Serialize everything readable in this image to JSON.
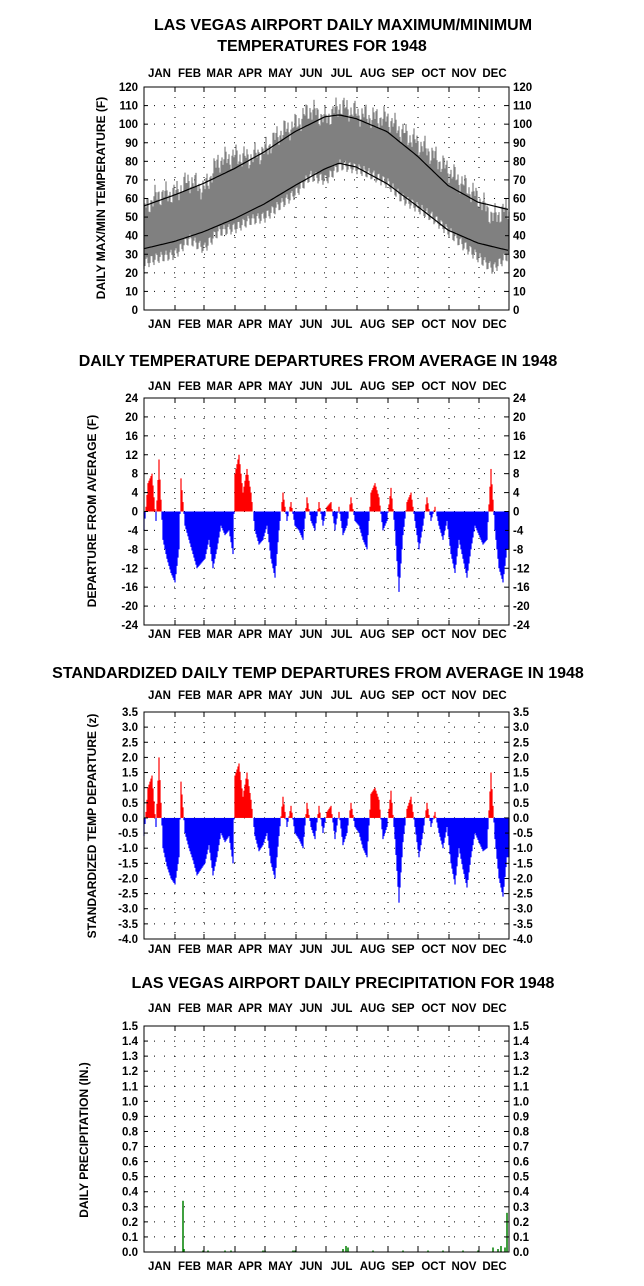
{
  "months": [
    "JAN",
    "FEB",
    "MAR",
    "APR",
    "MAY",
    "JUN",
    "JUL",
    "AUG",
    "SEP",
    "OCT",
    "NOV",
    "DEC"
  ],
  "chart_data": [
    {
      "type": "area",
      "title_lines": [
        "LAS VEGAS AIRPORT DAILY MAXIMUM/MINIMUM",
        "TEMPERATURES FOR 1948"
      ],
      "ylabel": "DAILY MAX/MIN TEMPERATURE (F)",
      "ylim": [
        0,
        120
      ],
      "yticks": [
        0,
        10,
        20,
        30,
        40,
        50,
        60,
        70,
        80,
        90,
        100,
        110,
        120
      ],
      "grid": true,
      "colors": {
        "range": "#808080",
        "normals": "#000000"
      },
      "daily_max_sampled": {
        "days": [
          1,
          15,
          32,
          46,
          61,
          75,
          92,
          106,
          122,
          136,
          153,
          167,
          183,
          197,
          214,
          228,
          245,
          259,
          275,
          289,
          306,
          320,
          336,
          350,
          366
        ],
        "values": [
          55,
          62,
          63,
          70,
          65,
          80,
          83,
          82,
          86,
          95,
          100,
          108,
          103,
          110,
          106,
          104,
          103,
          96,
          90,
          84,
          75,
          68,
          60,
          50,
          55
        ]
      },
      "daily_min_sampled": {
        "days": [
          1,
          15,
          32,
          46,
          61,
          75,
          92,
          106,
          122,
          136,
          153,
          167,
          183,
          197,
          214,
          228,
          245,
          259,
          275,
          289,
          306,
          320,
          336,
          350,
          366
        ],
        "values": [
          25,
          28,
          30,
          38,
          33,
          42,
          44,
          48,
          50,
          56,
          63,
          72,
          70,
          78,
          76,
          73,
          68,
          60,
          55,
          50,
          42,
          35,
          28,
          22,
          30
        ]
      },
      "normal_max": {
        "days": [
          1,
          32,
          60,
          91,
          121,
          152,
          182,
          196,
          213,
          244,
          274,
          305,
          335,
          366
        ],
        "values": [
          56,
          62,
          68,
          76,
          85,
          96,
          104,
          105,
          103,
          96,
          83,
          67,
          58,
          54
        ]
      },
      "normal_min": {
        "days": [
          1,
          32,
          60,
          91,
          121,
          152,
          182,
          196,
          213,
          244,
          274,
          305,
          335,
          366
        ],
        "values": [
          33,
          37,
          42,
          49,
          57,
          67,
          76,
          79,
          77,
          68,
          56,
          43,
          36,
          32
        ]
      }
    },
    {
      "type": "bar",
      "title_lines": [
        "DAILY TEMPERATURE DEPARTURES FROM AVERAGE IN 1948"
      ],
      "ylabel": "DEPARTURE FROM AVERAGE (F)",
      "ylim": [
        -24,
        24
      ],
      "yticks": [
        24,
        20,
        16,
        12,
        8,
        4,
        0,
        -4,
        -8,
        -12,
        -16,
        -20,
        -24
      ],
      "grid": true,
      "colors": {
        "positive": "#ff0000",
        "negative": "#0000ff"
      },
      "departures_sampled": {
        "days": [
          1,
          5,
          9,
          13,
          16,
          20,
          24,
          28,
          32,
          36,
          38,
          42,
          46,
          50,
          54,
          58,
          62,
          66,
          70,
          74,
          78,
          82,
          86,
          90,
          92,
          96,
          100,
          104,
          108,
          112,
          116,
          120,
          124,
          128,
          132,
          136,
          140,
          144,
          148,
          152,
          156,
          160,
          164,
          168,
          172,
          176,
          180,
          184,
          188,
          192,
          196,
          200,
          204,
          208,
          212,
          216,
          220,
          224,
          228,
          232,
          236,
          240,
          244,
          248,
          252,
          256,
          260,
          264,
          268,
          272,
          276,
          280,
          284,
          288,
          292,
          296,
          300,
          304,
          308,
          312,
          316,
          320,
          324,
          328,
          332,
          336,
          340,
          344,
          348,
          352,
          356,
          360,
          364
        ],
        "values": [
          -4,
          6,
          8,
          -2,
          11,
          -6,
          -10,
          -13,
          -15,
          -8,
          7,
          -3,
          -6,
          -9,
          -12,
          -11,
          -10,
          -6,
          -12,
          -8,
          -3,
          -5,
          -4,
          -9,
          8,
          12,
          4,
          9,
          4,
          -4,
          -7,
          -6,
          -3,
          -10,
          -14,
          -4,
          4,
          -2,
          2,
          -3,
          -4,
          -6,
          3,
          -2,
          -4,
          2,
          -3,
          1,
          2,
          -4,
          1,
          -5,
          -3,
          3,
          -2,
          -3,
          -6,
          -8,
          4,
          6,
          3,
          -4,
          -2,
          5,
          -4,
          -17,
          -5,
          2,
          4,
          -2,
          -8,
          -3,
          3,
          -2,
          1,
          -3,
          -6,
          -2,
          -9,
          -13,
          -6,
          -10,
          -14,
          -8,
          -3,
          -5,
          -7,
          -6,
          9,
          -4,
          -12,
          -15,
          -8
        ]
      }
    },
    {
      "type": "bar",
      "title_lines": [
        "STANDARDIZED DAILY TEMP DEPARTURES FROM AVERAGE IN 1948"
      ],
      "ylabel": "STANDARDIZED TEMP DEPARTURE (z)",
      "ylim": [
        -4.0,
        3.5
      ],
      "yticks": [
        "3.5",
        "3.0",
        "2.5",
        "2.0",
        "1.5",
        "1.0",
        "0.5",
        "0.0",
        "-0.5",
        "-1.0",
        "-1.5",
        "-2.0",
        "-2.5",
        "-3.0",
        "-3.5",
        "-4.0"
      ],
      "grid": true,
      "colors": {
        "positive": "#ff0000",
        "negative": "#0000ff"
      },
      "standardized_sampled": {
        "days": [
          1,
          5,
          9,
          13,
          16,
          20,
          24,
          28,
          32,
          36,
          38,
          42,
          46,
          50,
          54,
          58,
          62,
          66,
          70,
          74,
          78,
          82,
          86,
          90,
          92,
          96,
          100,
          104,
          108,
          112,
          116,
          120,
          124,
          128,
          132,
          136,
          140,
          144,
          148,
          152,
          156,
          160,
          164,
          168,
          172,
          176,
          180,
          184,
          188,
          192,
          196,
          200,
          204,
          208,
          212,
          216,
          220,
          224,
          228,
          232,
          236,
          240,
          244,
          248,
          252,
          256,
          260,
          264,
          268,
          272,
          276,
          280,
          284,
          288,
          292,
          296,
          300,
          304,
          308,
          312,
          316,
          320,
          324,
          328,
          332,
          336,
          340,
          344,
          348,
          352,
          356,
          360,
          364
        ],
        "values": [
          -0.6,
          1.0,
          1.4,
          -0.3,
          2.0,
          -1.0,
          -1.6,
          -2.0,
          -2.2,
          -1.3,
          1.2,
          -0.5,
          -1.0,
          -1.4,
          -1.9,
          -1.7,
          -1.5,
          -0.9,
          -1.9,
          -1.3,
          -0.5,
          -0.8,
          -0.6,
          -1.5,
          1.4,
          1.8,
          0.7,
          1.5,
          0.6,
          -0.6,
          -1.1,
          -0.9,
          -0.5,
          -1.5,
          -2.0,
          -0.6,
          0.7,
          -0.3,
          0.4,
          -0.5,
          -0.7,
          -1.0,
          0.5,
          -0.3,
          -0.7,
          0.4,
          -0.5,
          0.2,
          0.4,
          -0.7,
          0.2,
          -0.9,
          -0.5,
          0.5,
          -0.3,
          -0.5,
          -1.0,
          -1.3,
          0.8,
          1.0,
          0.6,
          -0.7,
          -0.3,
          0.9,
          -0.7,
          -2.8,
          -0.8,
          0.3,
          0.7,
          -0.3,
          -1.3,
          -0.5,
          0.5,
          -0.3,
          0.2,
          -0.5,
          -1.0,
          -0.3,
          -1.5,
          -2.2,
          -1.0,
          -1.7,
          -2.3,
          -1.3,
          -0.5,
          -0.8,
          -1.1,
          -1.0,
          1.5,
          -0.7,
          -2.0,
          -2.6,
          -1.3
        ]
      }
    },
    {
      "type": "bar",
      "title_lines": [
        "LAS VEGAS AIRPORT DAILY PRECIPITATION FOR 1948"
      ],
      "ylabel": "DAILY PRECIPITATION (IN.)",
      "ylim": [
        0.0,
        1.5
      ],
      "yticks": [
        "1.5",
        "1.4",
        "1.3",
        "1.2",
        "1.1",
        "1.0",
        "0.9",
        "0.8",
        "0.7",
        "0.6",
        "0.5",
        "0.4",
        "0.3",
        "0.2",
        "0.1",
        "0.0"
      ],
      "grid": true,
      "colors": {
        "bar": "#008000"
      },
      "precipitation": {
        "days": [
          40,
          41,
          60,
          65,
          82,
          88,
          120,
          122,
          150,
          152,
          200,
          203,
          205,
          230,
          260,
          285,
          300,
          320,
          335,
          350,
          355,
          358,
          362,
          364
        ],
        "values": [
          0.34,
          0.02,
          0.01,
          0.01,
          0.01,
          0.01,
          0.01,
          0.01,
          0.01,
          0.01,
          0.02,
          0.04,
          0.03,
          0.01,
          0.01,
          0.01,
          0.01,
          0.01,
          0.01,
          0.03,
          0.02,
          0.04,
          0.03,
          0.26
        ]
      }
    }
  ]
}
